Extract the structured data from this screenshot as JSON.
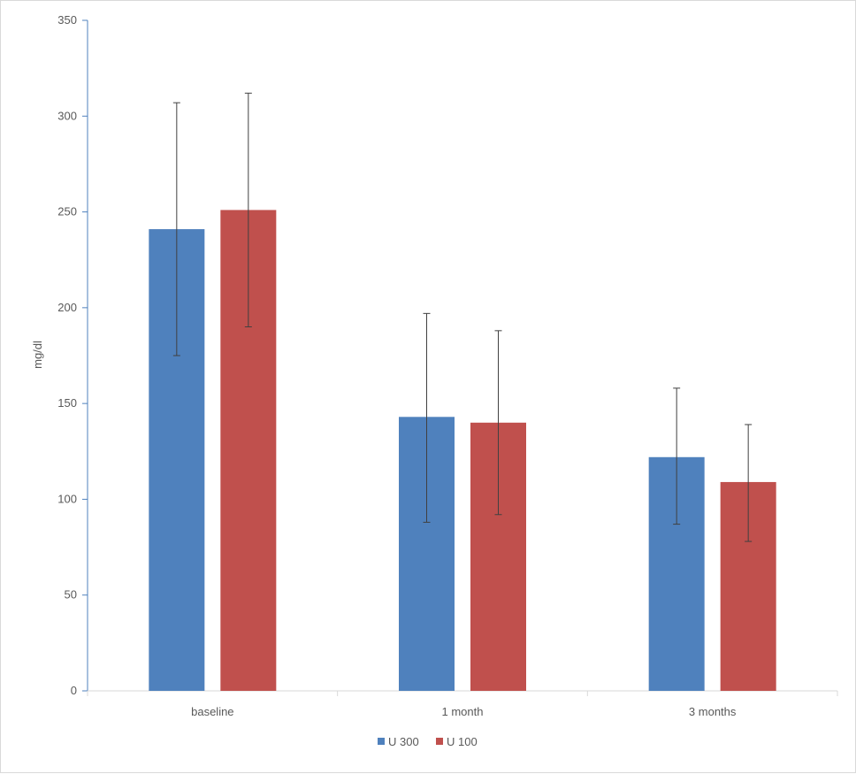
{
  "chart_data": {
    "type": "bar",
    "title": "",
    "xlabel": "",
    "ylabel": "mg/dl",
    "ylim": [
      0,
      350
    ],
    "yticks": [
      0,
      50,
      100,
      150,
      200,
      250,
      300,
      350
    ],
    "categories": [
      "baseline",
      "1 month",
      "3 months"
    ],
    "series": [
      {
        "name": "U 300",
        "color": "#4f81bd",
        "values": [
          241,
          143,
          122
        ],
        "error_low": [
          175,
          88,
          87
        ],
        "error_high": [
          307,
          197,
          158
        ]
      },
      {
        "name": "U 100",
        "color": "#c0504d",
        "values": [
          251,
          140,
          109
        ],
        "error_low": [
          190,
          92,
          78
        ],
        "error_high": [
          312,
          188,
          139
        ]
      }
    ],
    "grid": false,
    "legend": "bottom",
    "error_bar_color": "#404040"
  }
}
